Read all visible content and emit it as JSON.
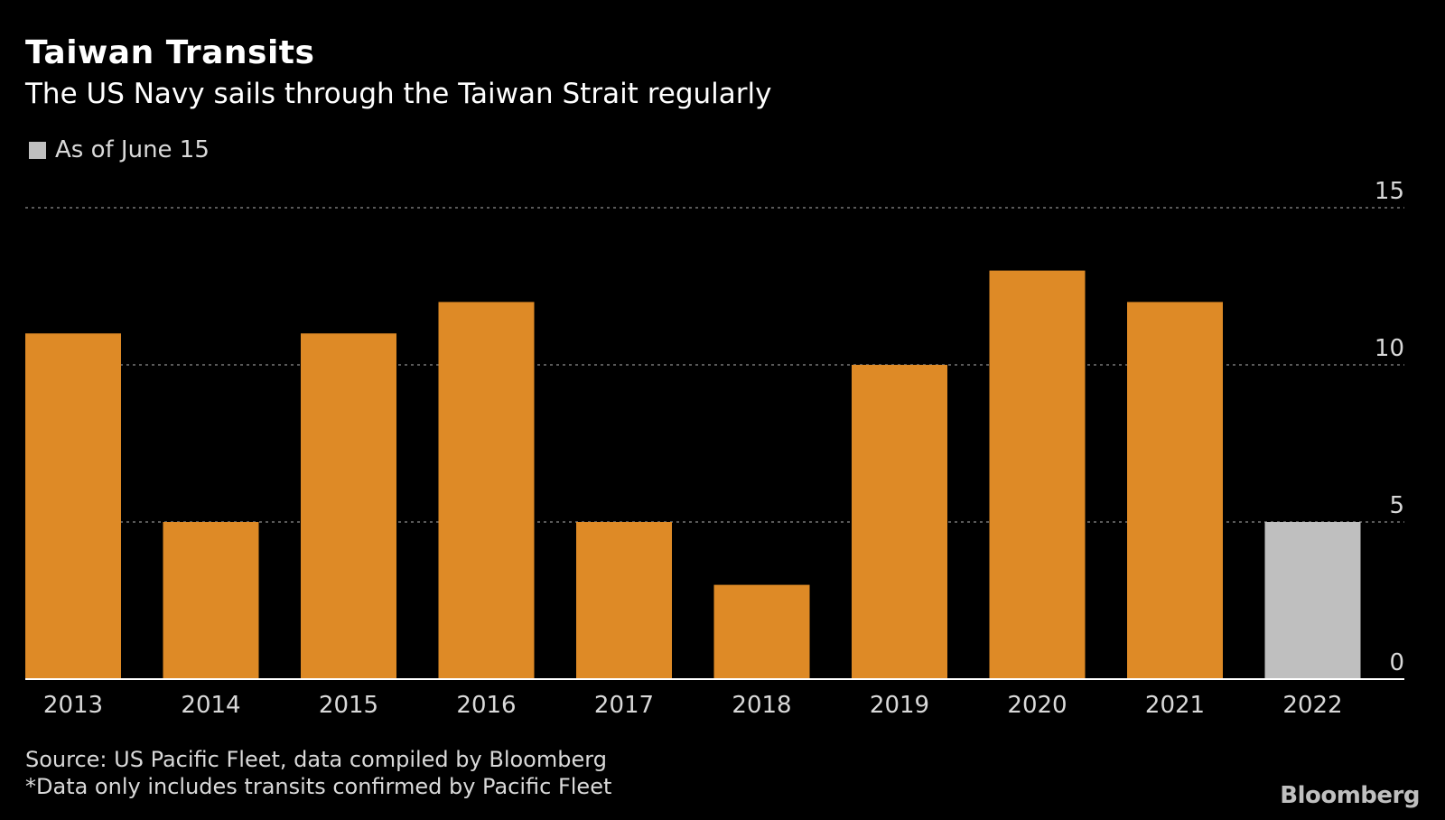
{
  "header": {
    "title": "Taiwan Transits",
    "subtitle": "The US Navy sails through the Taiwan Strait regularly"
  },
  "legend": {
    "label": "As of June 15",
    "color": "#bfbfbf"
  },
  "footer": {
    "source": "Source: US Pacific Fleet, data compiled by Bloomberg",
    "note": "*Data only includes transits confirmed by Pacific Fleet",
    "brand": "Bloomberg"
  },
  "colors": {
    "background": "#000000",
    "bar": "#de8a26",
    "partial_bar": "#bfbfbf",
    "grid": "#777777",
    "axis": "#ffffff",
    "text": "#d9d9d9"
  },
  "chart_data": {
    "type": "bar",
    "title": "Taiwan Transits",
    "subtitle": "The US Navy sails through the Taiwan Strait regularly",
    "categories": [
      "2013",
      "2014",
      "2015",
      "2016",
      "2017",
      "2018",
      "2019",
      "2020",
      "2021",
      "2022"
    ],
    "values": [
      11,
      5,
      11,
      12,
      5,
      3,
      10,
      13,
      12,
      5
    ],
    "partial": [
      false,
      false,
      false,
      false,
      false,
      false,
      false,
      false,
      false,
      true
    ],
    "xlabel": "",
    "ylabel": "",
    "ylim": [
      0,
      15
    ],
    "yticks": [
      0,
      5,
      10,
      15
    ],
    "ytick_labels": [
      "0",
      "5",
      "10",
      "15"
    ],
    "y_axis_side": "right",
    "grid": true,
    "legend": "top-left"
  }
}
